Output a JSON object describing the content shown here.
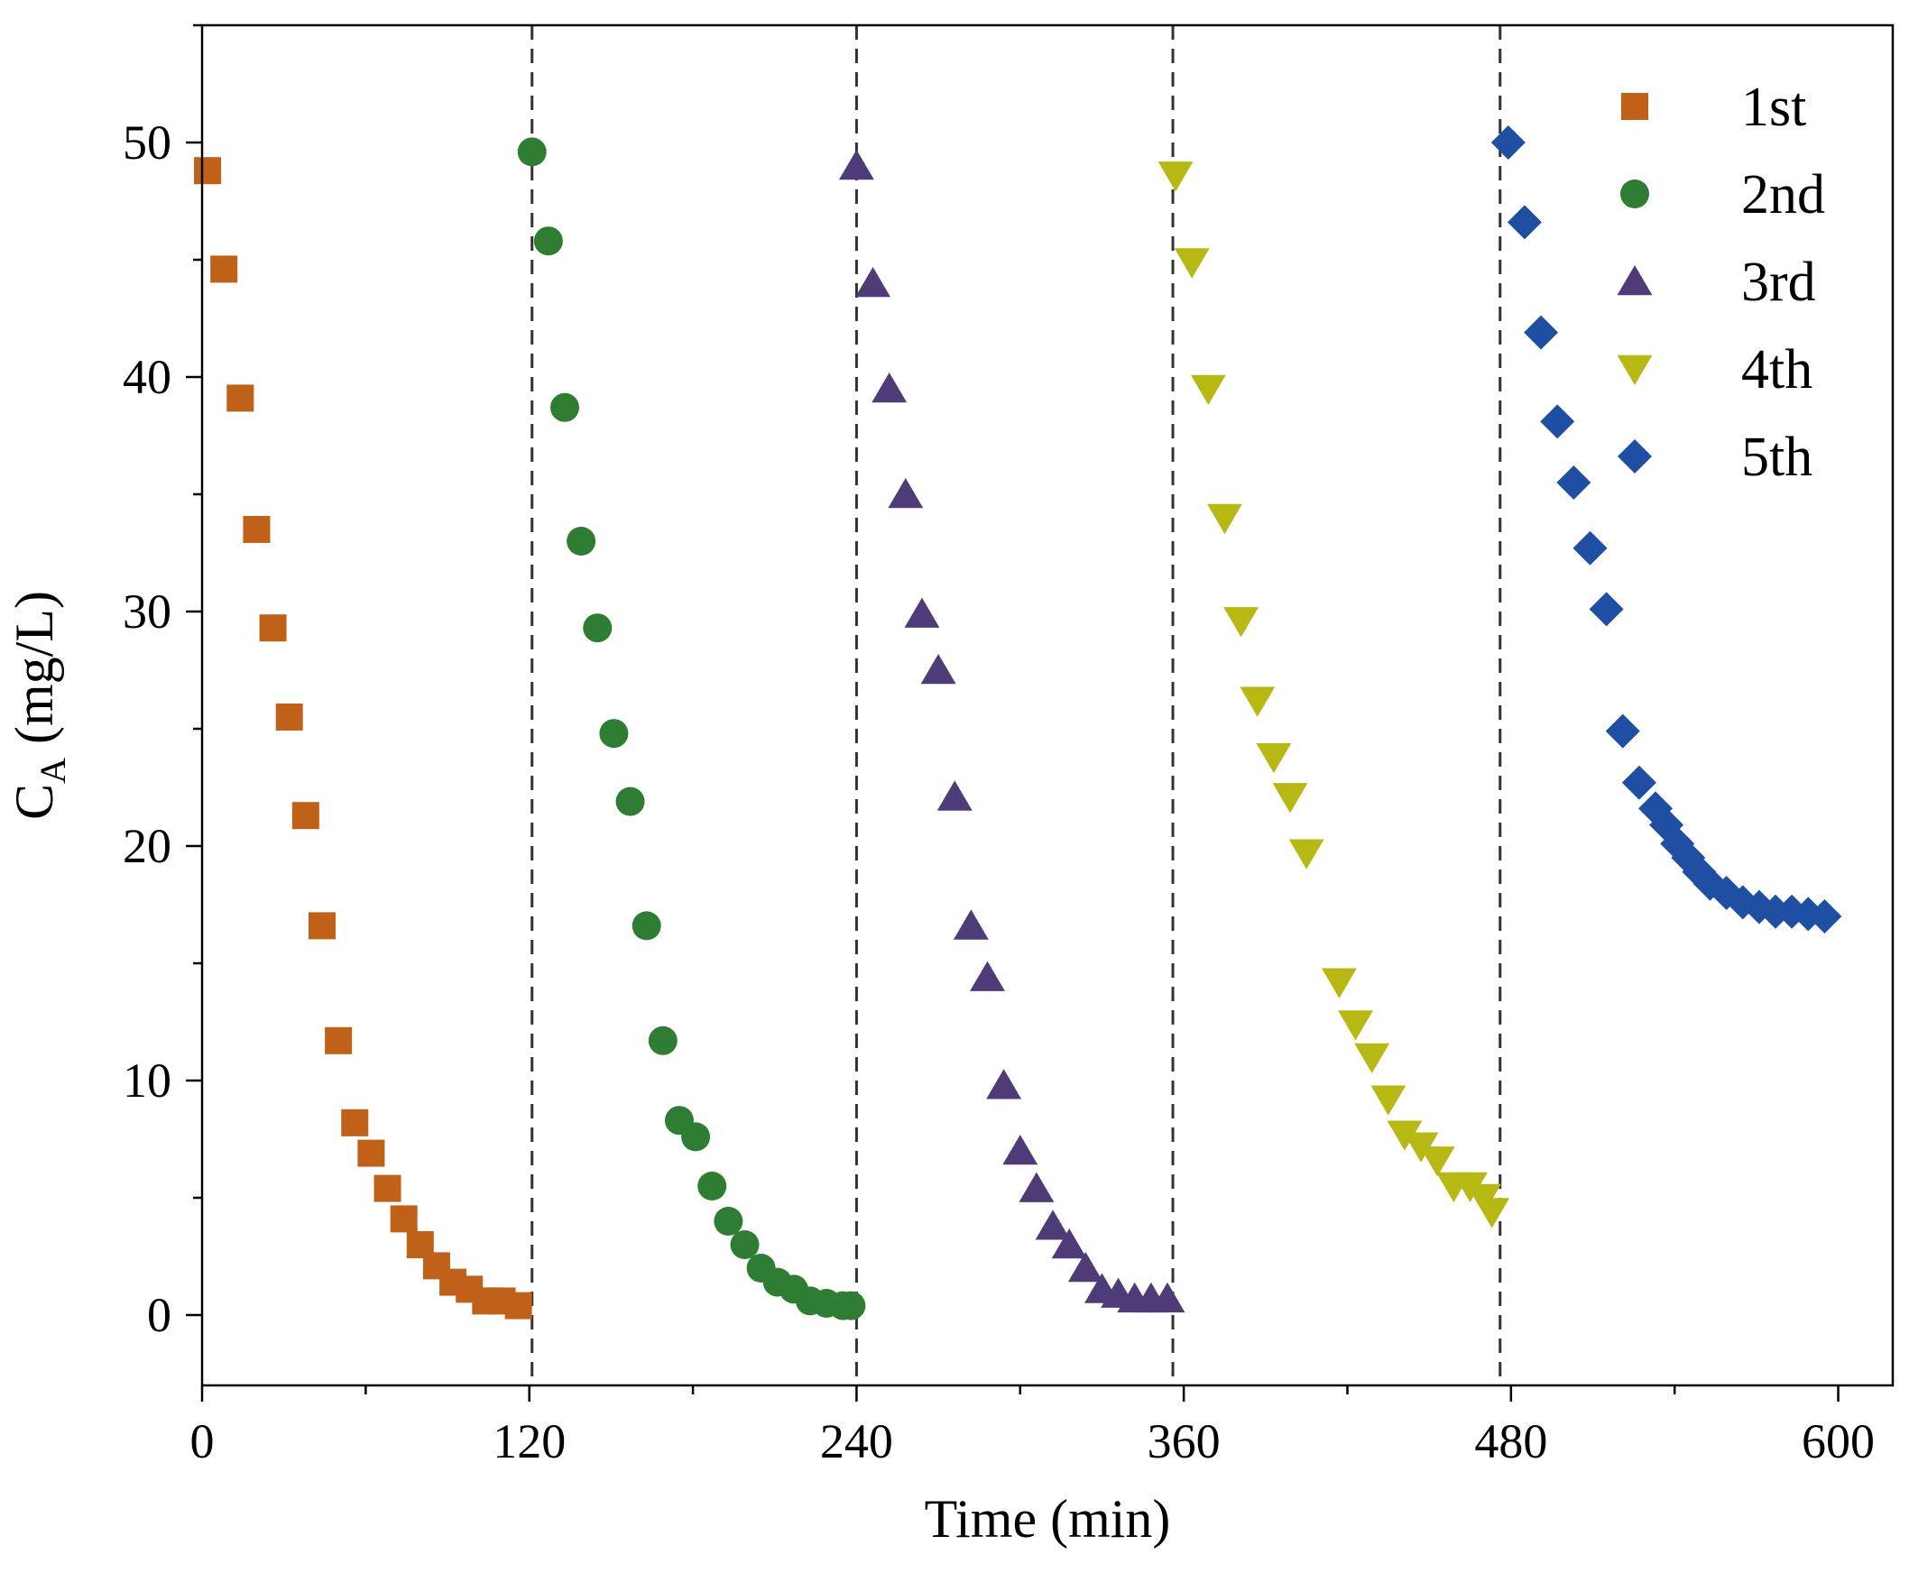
{
  "chart_data": {
    "type": "scatter",
    "title": "",
    "xlabel": "Time (min)",
    "ylabel": "C_A (mg/L)",
    "ylabel_main": "C",
    "ylabel_sub": "A",
    "ylabel_unit": " (mg/L)",
    "xlim": [
      0,
      620
    ],
    "ylim": [
      -3,
      55
    ],
    "xticks": [
      0,
      120,
      240,
      360,
      480,
      600
    ],
    "xtick_labels": [
      "0",
      "120",
      "240",
      "360",
      "480",
      "600"
    ],
    "yticks": [
      0,
      10,
      20,
      30,
      40,
      50
    ],
    "ytick_labels": [
      "0",
      "10",
      "20",
      "30",
      "40",
      "50"
    ],
    "cycle_boundaries": [
      121,
      240,
      356,
      476
    ],
    "grid": false,
    "legend_position": "top-right",
    "series": [
      {
        "name": "1st",
        "marker": "square",
        "color": "#C0611A",
        "x": [
          2,
          8,
          14,
          20,
          26,
          32,
          38,
          44,
          50,
          56,
          62,
          68,
          74,
          80,
          86,
          92,
          98,
          104,
          110,
          116
        ],
        "y": [
          48.8,
          44.6,
          39.1,
          33.5,
          29.3,
          25.5,
          21.3,
          16.6,
          11.7,
          8.2,
          6.9,
          5.4,
          4.1,
          3.0,
          2.1,
          1.4,
          1.1,
          0.6,
          0.6,
          0.4
        ]
      },
      {
        "name": "2nd",
        "marker": "circle",
        "color": "#2E7D32",
        "x": [
          121,
          127,
          133,
          139,
          145,
          151,
          157,
          163,
          169,
          175,
          181,
          187,
          193,
          199,
          205,
          211,
          217,
          223,
          229,
          235,
          238
        ],
        "y": [
          49.6,
          45.8,
          38.7,
          33.0,
          29.3,
          24.8,
          21.9,
          16.6,
          11.7,
          8.3,
          7.6,
          5.5,
          4.0,
          3.0,
          2.0,
          1.4,
          1.1,
          0.6,
          0.5,
          0.4,
          0.4
        ]
      },
      {
        "name": "3rd",
        "marker": "triangle-up",
        "color": "#4E3B78",
        "x": [
          240,
          246,
          252,
          258,
          264,
          270,
          276,
          282,
          288,
          294,
          300,
          306,
          312,
          318,
          324,
          330,
          336,
          342,
          348,
          354
        ],
        "y": [
          49.0,
          44.0,
          39.5,
          35.0,
          29.9,
          27.5,
          22.1,
          16.6,
          14.4,
          9.8,
          7.0,
          5.4,
          3.8,
          3.0,
          2.0,
          1.1,
          0.9,
          0.7,
          0.7,
          0.7
        ]
      },
      {
        "name": "4th",
        "marker": "triangle-down",
        "color": "#B8B814",
        "x": [
          357,
          363,
          369,
          375,
          381,
          387,
          393,
          399,
          405,
          417,
          423,
          429,
          435,
          441,
          447,
          453,
          459,
          465,
          470,
          473
        ],
        "y": [
          48.6,
          44.9,
          39.5,
          34.0,
          29.6,
          26.2,
          23.8,
          22.1,
          19.7,
          14.2,
          12.4,
          11.0,
          9.2,
          7.7,
          7.2,
          6.6,
          5.5,
          5.5,
          5.0,
          4.4
        ]
      },
      {
        "name": "5th",
        "marker": "diamond",
        "color": "#1E4FA3",
        "x": [
          479,
          485,
          491,
          497,
          503,
          509,
          515,
          521,
          527,
          533,
          537,
          541,
          545,
          549,
          553,
          559,
          565,
          571,
          577,
          583,
          589,
          595
        ],
        "y": [
          50.0,
          46.6,
          41.9,
          38.1,
          35.5,
          32.7,
          30.1,
          24.9,
          22.7,
          21.6,
          20.9,
          20.1,
          19.5,
          18.9,
          18.4,
          18.0,
          17.6,
          17.4,
          17.2,
          17.2,
          17.1,
          17.0
        ]
      }
    ]
  }
}
